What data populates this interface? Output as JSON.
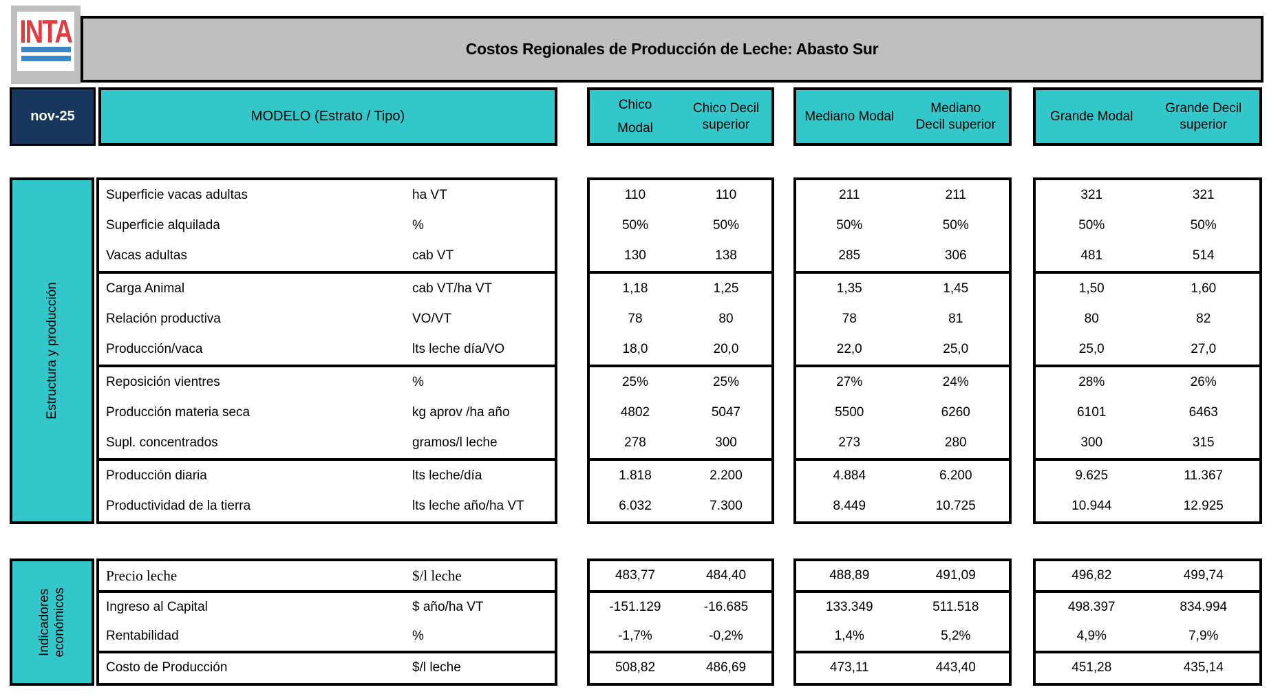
{
  "brand": {
    "logo_text": "INTA"
  },
  "header": {
    "title": "Costos Regionales de Producción de Leche: Abasto Sur",
    "date": "nov-25",
    "model_label": "MODELO (Estrato / Tipo)"
  },
  "columns": [
    {
      "modal_lines": [
        "Chico",
        "Modal"
      ],
      "decil": "Chico Decil superior"
    },
    {
      "modal": "Mediano Modal",
      "decil": "Mediano Decil superior"
    },
    {
      "modal": "Grande Modal",
      "decil": "Grande Decil superior"
    }
  ],
  "sections": [
    {
      "name": "Estructura y producción",
      "name_lines": [
        "Estructura y producción"
      ],
      "groups": [
        {
          "rows": [
            {
              "label": "Superficie vacas adultas",
              "unit": "ha VT",
              "values": [
                "110",
                "110",
                "211",
                "211",
                "321",
                "321"
              ]
            },
            {
              "label": "Superficie alquilada",
              "unit": "%",
              "values": [
                "50%",
                "50%",
                "50%",
                "50%",
                "50%",
                "50%"
              ]
            },
            {
              "label": "Vacas adultas",
              "unit": "cab VT",
              "values": [
                "130",
                "138",
                "285",
                "306",
                "481",
                "514"
              ]
            }
          ]
        },
        {
          "rows": [
            {
              "label": "Carga Animal",
              "unit": "cab VT/ha VT",
              "values": [
                "1,18",
                "1,25",
                "1,35",
                "1,45",
                "1,50",
                "1,60"
              ]
            },
            {
              "label": "Relación productiva",
              "unit": "VO/VT",
              "values": [
                "78",
                "80",
                "78",
                "81",
                "80",
                "82"
              ]
            },
            {
              "label": "Producción/vaca",
              "unit": "lts leche día/VO",
              "values": [
                "18,0",
                "20,0",
                "22,0",
                "25,0",
                "25,0",
                "27,0"
              ]
            }
          ]
        },
        {
          "rows": [
            {
              "label": "Reposición vientres",
              "unit": "%",
              "values": [
                "25%",
                "25%",
                "27%",
                "24%",
                "28%",
                "26%"
              ]
            },
            {
              "label": "Producción materia seca",
              "unit": "kg aprov /ha año",
              "values": [
                "4802",
                "5047",
                "5500",
                "6260",
                "6101",
                "6463"
              ]
            },
            {
              "label": "Supl. concentrados",
              "unit": "gramos/l leche",
              "values": [
                "278",
                "300",
                "273",
                "280",
                "300",
                "315"
              ]
            }
          ]
        },
        {
          "rows": [
            {
              "label": "Producción diaria",
              "unit": "lts leche/día",
              "values": [
                "1.818",
                "2.200",
                "4.884",
                "6.200",
                "9.625",
                "11.367"
              ]
            },
            {
              "label": "Productividad de la tierra",
              "unit": "lts leche año/ha VT",
              "values": [
                "6.032",
                "7.300",
                "8.449",
                "10.725",
                "10.944",
                "12.925"
              ]
            }
          ]
        }
      ]
    },
    {
      "name": "Indicadores económicos",
      "name_lines": [
        "Indicadores",
        "económicos"
      ],
      "groups": [
        {
          "rows": [
            {
              "label": "Precio leche",
              "unit": "$/l leche",
              "serif": true,
              "values": [
                "483,77",
                "484,40",
                "488,89",
                "491,09",
                "496,82",
                "499,74"
              ]
            }
          ]
        },
        {
          "rows": [
            {
              "label": "Ingreso al Capital",
              "unit": "$ año/ha VT",
              "values": [
                "-151.129",
                "-16.685",
                "133.349",
                "511.518",
                "498.397",
                "834.994"
              ]
            },
            {
              "label": "Rentabilidad",
              "unit": "%",
              "values": [
                "-1,7%",
                "-0,2%",
                "1,4%",
                "5,2%",
                "4,9%",
                "7,9%"
              ]
            }
          ]
        },
        {
          "rows": [
            {
              "label": "Costo de Producción",
              "unit": "$/l leche",
              "values": [
                "508,82",
                "486,69",
                "473,11",
                "443,40",
                "451,28",
                "435,14"
              ]
            }
          ]
        }
      ]
    }
  ],
  "colors": {
    "teal": "#31c7cb",
    "navy": "#17375e",
    "band_gray": "#bfbfbf",
    "logo_red": "#e13b3f",
    "logo_blue": "#3d86c6",
    "border_black": "#000000"
  }
}
